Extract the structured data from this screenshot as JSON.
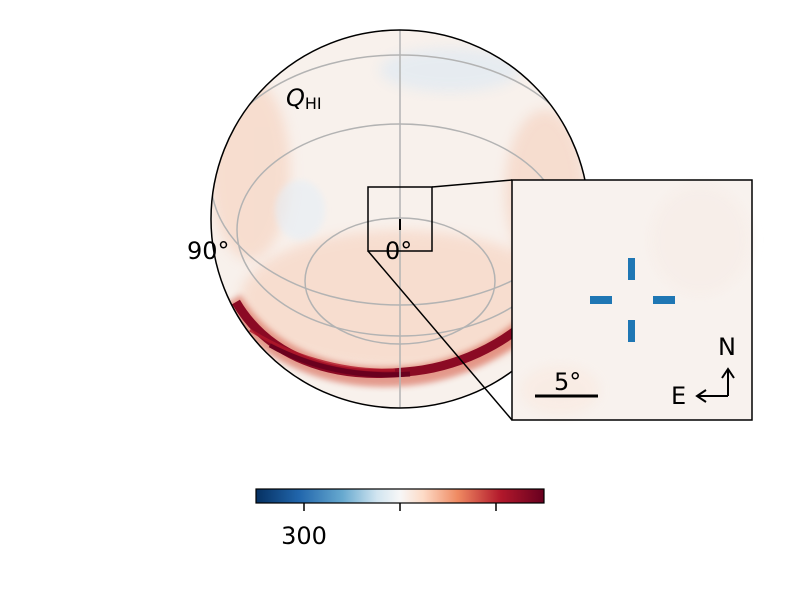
{
  "map": {
    "label_main": "Q",
    "label_sub": "HI",
    "lon_label_left": "90°",
    "lon_label_center": "0°"
  },
  "inset": {
    "scale_label": "5°",
    "compass_north": "N",
    "compass_east": "E",
    "marker_color": "#1f77b4"
  },
  "colorbar": {
    "colormap": "RdBu_r",
    "tick_label": "300",
    "color_low": "#053061",
    "color_mid": "#f7f7f7",
    "color_high": "#67001f"
  }
}
